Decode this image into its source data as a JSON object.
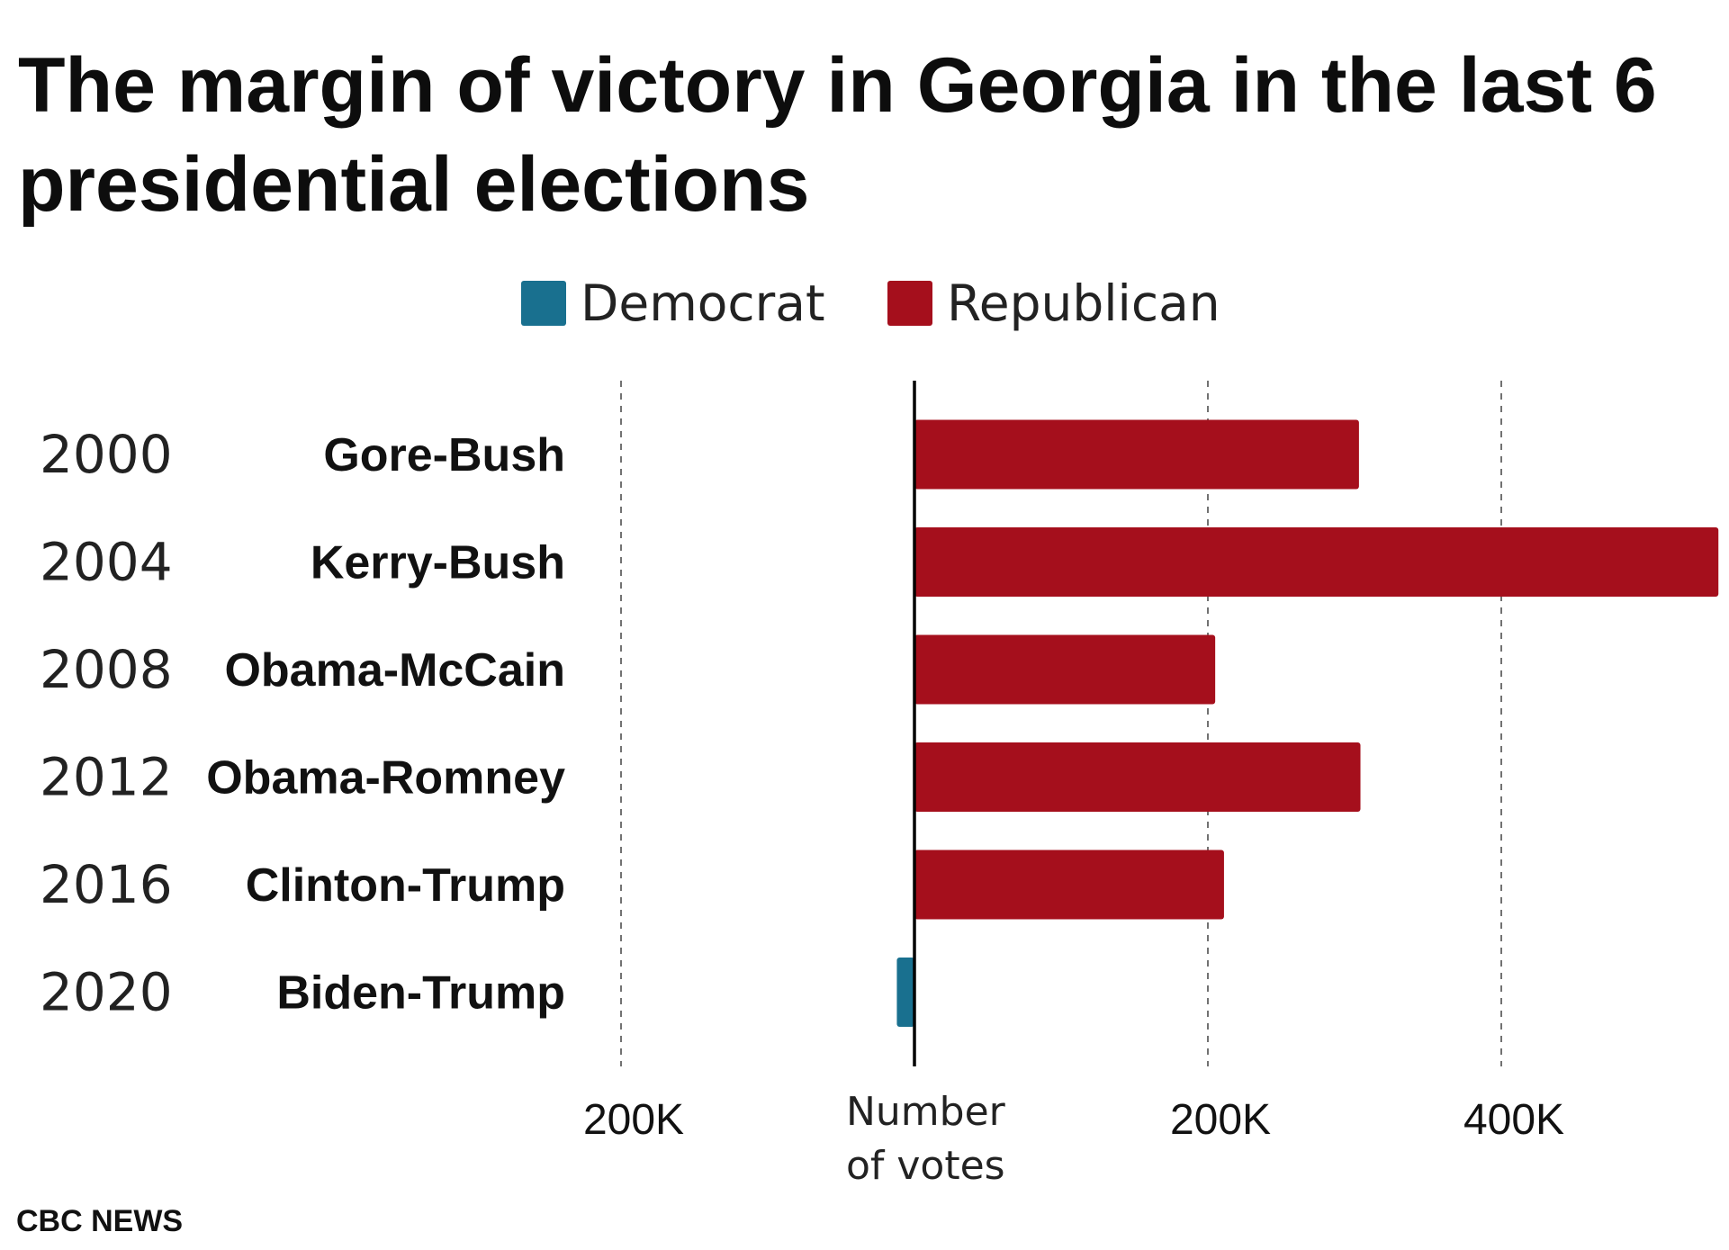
{
  "title": "The margin of victory in Georgia in the last 6 presidential elections",
  "legend": [
    {
      "label": "Democrat",
      "color": "#19708f"
    },
    {
      "label": "Republican",
      "color": "#a50f1c"
    }
  ],
  "source": "CBC NEWS",
  "chart_data": {
    "type": "bar",
    "orientation": "horizontal",
    "categories": [
      {
        "year": "2000",
        "contest": "Gore-Bush"
      },
      {
        "year": "2004",
        "contest": "Kerry-Bush"
      },
      {
        "year": "2008",
        "contest": "Obama-McCain"
      },
      {
        "year": "2012",
        "contest": "Obama-Romney"
      },
      {
        "year": "2016",
        "contest": "Clinton-Trump"
      },
      {
        "year": "2020",
        "contest": "Biden-Trump"
      }
    ],
    "values": [
      303000,
      548000,
      205000,
      304000,
      211000,
      -12000
    ],
    "winner": [
      "Republican",
      "Republican",
      "Republican",
      "Republican",
      "Republican",
      "Democrat"
    ],
    "xlim": [
      -200000,
      548000
    ],
    "xticks": [
      {
        "value": -200000,
        "label": "200K"
      },
      {
        "value": 200000,
        "label": "200K"
      },
      {
        "value": 400000,
        "label": "400K"
      }
    ],
    "xlabel": "Number of votes",
    "grid": "vertical dashed"
  }
}
